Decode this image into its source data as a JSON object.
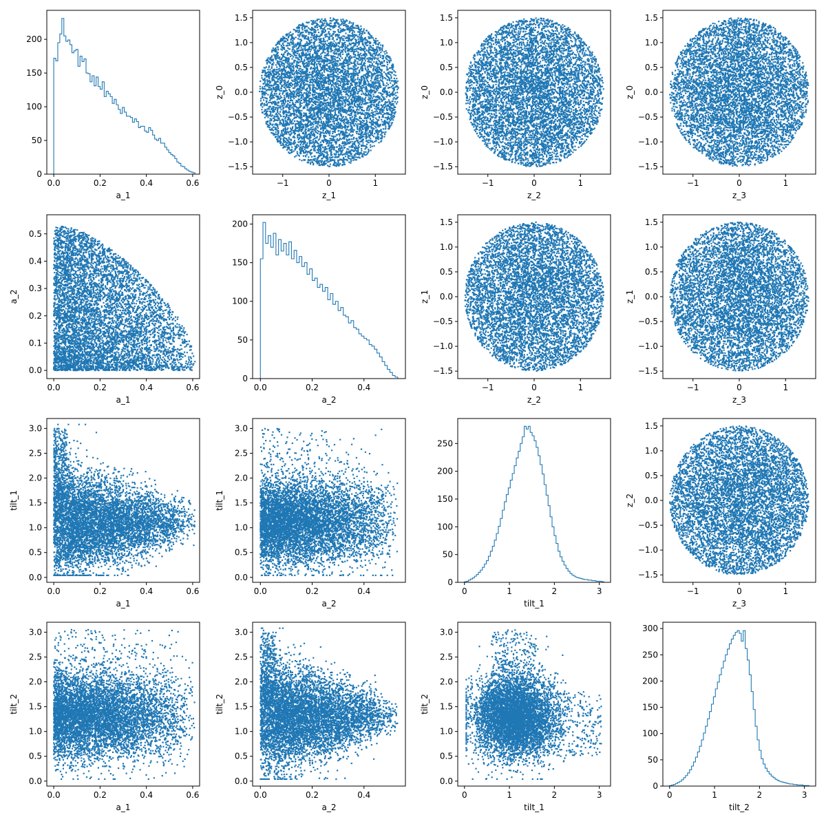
{
  "accent_color": "#1f77b4",
  "chart_data": [
    {
      "type": "histogram",
      "row": 0,
      "col": 0,
      "variable": "a_1",
      "xlabel": "a_1",
      "ylabel": "",
      "xlim": [
        -0.03,
        0.63
      ],
      "ylim": [
        0,
        243
      ],
      "xticks": [
        0,
        0.2,
        0.4,
        0.6
      ],
      "yticks": [
        0,
        50,
        100,
        150,
        200
      ],
      "bin_range": [
        0,
        0.61
      ],
      "counts": [
        172,
        168,
        195,
        208,
        231,
        205,
        197,
        199,
        192,
        180,
        183,
        185,
        160,
        175,
        167,
        171,
        150,
        149,
        137,
        146,
        131,
        144,
        130,
        126,
        137,
        115,
        123,
        119,
        115,
        105,
        111,
        103,
        96,
        90,
        99,
        92,
        86,
        86,
        84,
        77,
        82,
        78,
        69,
        71,
        71,
        64,
        62,
        69,
        65,
        58,
        52,
        50,
        53,
        46,
        46,
        40,
        36,
        32,
        29,
        27,
        23,
        18,
        16,
        12,
        11,
        8,
        6,
        4,
        3,
        2
      ]
    },
    {
      "type": "scatter",
      "row": 0,
      "col": 1,
      "x_var": "z_1",
      "y_var": "z_0",
      "xlabel": "z_1",
      "ylabel": "z_0",
      "xlim": [
        -1.65,
        1.65
      ],
      "ylim": [
        -1.65,
        1.65
      ],
      "xticks": [
        -1,
        0,
        1
      ],
      "yticks": [
        -1.5,
        -1.0,
        -0.5,
        0.0,
        0.5,
        1.0,
        1.5
      ],
      "n_points": 10000
    },
    {
      "type": "scatter",
      "row": 0,
      "col": 2,
      "x_var": "z_2",
      "y_var": "z_0",
      "xlabel": "z_2",
      "ylabel": "z_0",
      "xlim": [
        -1.65,
        1.65
      ],
      "ylim": [
        -1.65,
        1.65
      ],
      "xticks": [
        -1,
        0,
        1
      ],
      "yticks": [
        -1.5,
        -1.0,
        -0.5,
        0.0,
        0.5,
        1.0,
        1.5
      ],
      "n_points": 10000
    },
    {
      "type": "scatter",
      "row": 0,
      "col": 3,
      "x_var": "z_3",
      "y_var": "z_0",
      "xlabel": "z_3",
      "ylabel": "z_0",
      "xlim": [
        -1.65,
        1.65
      ],
      "ylim": [
        -1.65,
        1.65
      ],
      "xticks": [
        -1,
        0,
        1
      ],
      "yticks": [
        -1.5,
        -1.0,
        -0.5,
        0.0,
        0.5,
        1.0,
        1.5
      ],
      "n_points": 10000
    },
    {
      "type": "scatter",
      "row": 1,
      "col": 0,
      "x_var": "a_1",
      "y_var": "a_2",
      "xlabel": "a_1",
      "ylabel": "a_2",
      "xlim": [
        -0.03,
        0.63
      ],
      "ylim": [
        -0.03,
        0.57
      ],
      "xticks": [
        0,
        0.2,
        0.4,
        0.6
      ],
      "yticks": [
        0,
        0.1,
        0.2,
        0.3,
        0.4,
        0.5
      ],
      "n_points": 10000
    },
    {
      "type": "histogram",
      "row": 1,
      "col": 1,
      "variable": "a_2",
      "xlabel": "a_2",
      "ylabel": "",
      "xlim": [
        -0.03,
        0.56
      ],
      "ylim": [
        0,
        212
      ],
      "xticks": [
        0,
        0.2,
        0.4
      ],
      "yticks": [
        0,
        50,
        100,
        150,
        200
      ],
      "bin_range": [
        0,
        0.53
      ],
      "counts": [
        155,
        202,
        175,
        185,
        170,
        188,
        160,
        180,
        165,
        175,
        160,
        177,
        155,
        166,
        150,
        158,
        145,
        150,
        135,
        142,
        127,
        130,
        118,
        122,
        113,
        118,
        102,
        110,
        96,
        100,
        88,
        92,
        82,
        80,
        72,
        75,
        66,
        64,
        58,
        55,
        52,
        50,
        44,
        42,
        38,
        33,
        28,
        22,
        17,
        12,
        8,
        4,
        2
      ]
    },
    {
      "type": "scatter",
      "row": 1,
      "col": 2,
      "x_var": "z_2",
      "y_var": "z_1",
      "xlabel": "z_2",
      "ylabel": "z_1",
      "xlim": [
        -1.65,
        1.65
      ],
      "ylim": [
        -1.65,
        1.65
      ],
      "xticks": [
        -1,
        0,
        1
      ],
      "yticks": [
        -1.5,
        -1.0,
        -0.5,
        0.0,
        0.5,
        1.0,
        1.5
      ],
      "n_points": 10000
    },
    {
      "type": "scatter",
      "row": 1,
      "col": 3,
      "x_var": "z_3",
      "y_var": "z_1",
      "xlabel": "z_3",
      "ylabel": "z_1",
      "xlim": [
        -1.65,
        1.65
      ],
      "ylim": [
        -1.65,
        1.65
      ],
      "xticks": [
        -1,
        0,
        1
      ],
      "yticks": [
        -1.5,
        -1.0,
        -0.5,
        0.0,
        0.5,
        1.0,
        1.5
      ],
      "n_points": 10000
    },
    {
      "type": "scatter",
      "row": 2,
      "col": 0,
      "x_var": "a_1",
      "y_var": "tilt_1",
      "xlabel": "a_1",
      "ylabel": "tilt_1",
      "xlim": [
        -0.03,
        0.63
      ],
      "ylim": [
        -0.1,
        3.2
      ],
      "xticks": [
        0,
        0.2,
        0.4,
        0.6
      ],
      "yticks": [
        0,
        0.5,
        1.0,
        1.5,
        2.0,
        2.5,
        3.0
      ],
      "n_points": 10000
    },
    {
      "type": "scatter",
      "row": 2,
      "col": 1,
      "x_var": "a_2",
      "y_var": "tilt_1",
      "xlabel": "a_2",
      "ylabel": "tilt_1",
      "xlim": [
        -0.03,
        0.56
      ],
      "ylim": [
        -0.1,
        3.2
      ],
      "xticks": [
        0,
        0.2,
        0.4
      ],
      "yticks": [
        0,
        0.5,
        1.0,
        1.5,
        2.0,
        2.5,
        3.0
      ],
      "n_points": 10000
    },
    {
      "type": "histogram",
      "row": 2,
      "col": 2,
      "variable": "tilt_1",
      "xlabel": "tilt_1",
      "ylabel": "",
      "xlim": [
        -0.15,
        3.25
      ],
      "ylim": [
        0,
        295
      ],
      "xticks": [
        0,
        1,
        2,
        3
      ],
      "yticks": [
        0,
        50,
        100,
        150,
        200,
        250
      ],
      "bin_range": [
        0,
        3.1
      ],
      "counts": [
        1,
        2,
        4,
        6,
        8,
        11,
        14,
        18,
        22,
        27,
        33,
        39,
        47,
        56,
        65,
        76,
        88,
        101,
        115,
        130,
        145,
        158,
        170,
        184,
        196,
        210,
        224,
        236,
        250,
        262,
        281,
        276,
        281,
        270,
        264,
        255,
        243,
        228,
        212,
        195,
        176,
        157,
        138,
        118,
        100,
        84,
        70,
        56,
        46,
        38,
        31,
        25,
        20,
        16,
        13,
        11,
        9,
        8,
        7,
        6,
        5,
        5,
        4,
        4,
        3,
        3,
        2,
        2,
        2,
        1
      ]
    },
    {
      "type": "scatter",
      "row": 2,
      "col": 3,
      "x_var": "z_3",
      "y_var": "z_2",
      "xlabel": "z_3",
      "ylabel": "z_2",
      "xlim": [
        -1.65,
        1.65
      ],
      "ylim": [
        -1.65,
        1.65
      ],
      "xticks": [
        -1,
        0,
        1
      ],
      "yticks": [
        -1.5,
        -1.0,
        -0.5,
        0.0,
        0.5,
        1.0,
        1.5
      ],
      "n_points": 10000
    },
    {
      "type": "scatter",
      "row": 3,
      "col": 0,
      "x_var": "a_1",
      "y_var": "tilt_2",
      "xlabel": "a_1",
      "ylabel": "tilt_2",
      "xlim": [
        -0.03,
        0.63
      ],
      "ylim": [
        -0.1,
        3.2
      ],
      "xticks": [
        0,
        0.2,
        0.4,
        0.6
      ],
      "yticks": [
        0,
        0.5,
        1.0,
        1.5,
        2.0,
        2.5,
        3.0
      ],
      "n_points": 10000
    },
    {
      "type": "scatter",
      "row": 3,
      "col": 1,
      "x_var": "a_2",
      "y_var": "tilt_2",
      "xlabel": "a_2",
      "ylabel": "tilt_2",
      "xlim": [
        -0.03,
        0.56
      ],
      "ylim": [
        -0.1,
        3.2
      ],
      "xticks": [
        0,
        0.2,
        0.4
      ],
      "yticks": [
        0,
        0.5,
        1.0,
        1.5,
        2.0,
        2.5,
        3.0
      ],
      "n_points": 10000
    },
    {
      "type": "scatter",
      "row": 3,
      "col": 2,
      "x_var": "tilt_1",
      "y_var": "tilt_2",
      "xlabel": "tilt_1",
      "ylabel": "tilt_2",
      "xlim": [
        -0.15,
        3.25
      ],
      "ylim": [
        -0.1,
        3.2
      ],
      "xticks": [
        0,
        1,
        2,
        3
      ],
      "yticks": [
        0,
        0.5,
        1.0,
        1.5,
        2.0,
        2.5,
        3.0
      ],
      "n_points": 10000
    },
    {
      "type": "histogram",
      "row": 3,
      "col": 3,
      "variable": "tilt_2",
      "xlabel": "tilt_2",
      "ylabel": "",
      "xlim": [
        -0.15,
        3.25
      ],
      "ylim": [
        0,
        312
      ],
      "xticks": [
        0,
        1,
        2,
        3
      ],
      "yticks": [
        0,
        50,
        100,
        150,
        200,
        250,
        300
      ],
      "bin_range": [
        0,
        3.1
      ],
      "counts": [
        1,
        2,
        3,
        5,
        7,
        9,
        12,
        16,
        20,
        25,
        31,
        38,
        46,
        55,
        65,
        76,
        88,
        101,
        114,
        128,
        142,
        156,
        170,
        185,
        198,
        212,
        225,
        238,
        250,
        261,
        271,
        280,
        287,
        293,
        296,
        291,
        276,
        296,
        262,
        240,
        212,
        180,
        146,
        114,
        88,
        68,
        52,
        42,
        34,
        28,
        23,
        19,
        16,
        13,
        11,
        9,
        8,
        7,
        6,
        5,
        4,
        4,
        3,
        3,
        2,
        2,
        2,
        1,
        1,
        1
      ]
    }
  ]
}
